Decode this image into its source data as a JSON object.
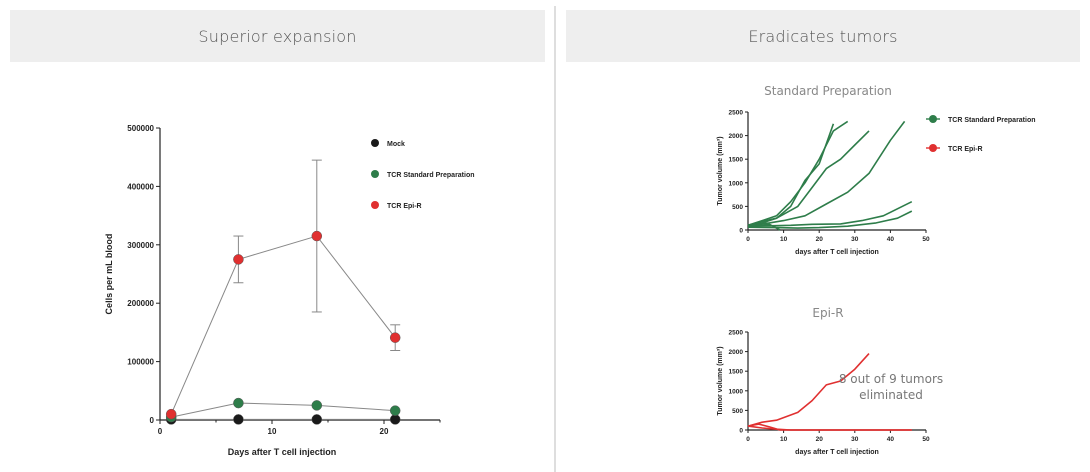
{
  "panels": {
    "left_title": "Superior expansion",
    "right_title": "Eradicates tumors"
  },
  "colors": {
    "mock": "#1a1a1a",
    "standard": "#2e7d4a",
    "epi": "#e03030",
    "connect": "#888888"
  },
  "chart_data": [
    {
      "type": "scatter",
      "title": "",
      "xlabel": "Days after T cell injection",
      "ylabel": "Cells per mL blood",
      "xlim": [
        0,
        25
      ],
      "ylim": [
        0,
        500000
      ],
      "xticks": [
        "0",
        "10",
        "20"
      ],
      "yticks": [
        "0",
        "100000",
        "200000",
        "300000",
        "400000",
        "500000"
      ],
      "legend_position": "top-right",
      "series": [
        {
          "name": "Mock",
          "x": [
            1,
            7,
            14,
            21
          ],
          "y": [
            1000,
            1000,
            1000,
            1000
          ]
        },
        {
          "name": "TCR Standard Preparation",
          "x": [
            1,
            7,
            14,
            21
          ],
          "y": [
            5000,
            29000,
            25000,
            16000
          ]
        },
        {
          "name": "TCR Epi-R",
          "x": [
            1,
            7,
            14,
            21
          ],
          "y": [
            10000,
            275000,
            315000,
            141000
          ],
          "error": [
            0,
            40000,
            130000,
            22000
          ]
        }
      ]
    },
    {
      "type": "line",
      "title": "Standard Preparation",
      "xlabel": "days after T cell injection",
      "ylabel": "Tumor volume (mm³)",
      "xlim": [
        0,
        50
      ],
      "ylim": [
        0,
        2500
      ],
      "xticks": [
        "0",
        "10",
        "20",
        "30",
        "40",
        "50"
      ],
      "yticks": [
        "0",
        "500",
        "1000",
        "1500",
        "2000",
        "2500"
      ],
      "legend_position": "right",
      "legend": [
        "TCR Standard Preparation",
        "TCR Epi-R"
      ],
      "series": [
        {
          "x": [
            0,
            4,
            8,
            12,
            16,
            20,
            24
          ],
          "y": [
            100,
            180,
            250,
            500,
            1050,
            1400,
            2250
          ]
        },
        {
          "x": [
            0,
            4,
            8,
            12,
            16,
            20,
            24,
            28
          ],
          "y": [
            100,
            200,
            300,
            600,
            1000,
            1500,
            2100,
            2300
          ]
        },
        {
          "x": [
            0,
            4,
            8,
            14,
            18,
            22,
            26,
            30,
            34
          ],
          "y": [
            100,
            150,
            250,
            500,
            900,
            1300,
            1500,
            1800,
            2100
          ]
        },
        {
          "x": [
            0,
            6,
            10,
            16,
            22,
            28,
            34,
            40,
            44
          ],
          "y": [
            100,
            150,
            200,
            300,
            550,
            800,
            1200,
            1900,
            2300
          ]
        },
        {
          "x": [
            0,
            6,
            12,
            18,
            26,
            32,
            38,
            46
          ],
          "y": [
            80,
            90,
            100,
            120,
            130,
            200,
            300,
            600
          ]
        },
        {
          "x": [
            0,
            8,
            14,
            20,
            28,
            36,
            42,
            46
          ],
          "y": [
            60,
            50,
            40,
            50,
            80,
            150,
            250,
            400
          ]
        },
        {
          "x": [
            0,
            3,
            6,
            9
          ],
          "y": [
            80,
            100,
            120,
            0
          ]
        }
      ]
    },
    {
      "type": "line",
      "title": "Epi-R",
      "xlabel": "days after T cell injection",
      "ylabel": "Tumor volume (mm³)",
      "xlim": [
        0,
        50
      ],
      "ylim": [
        0,
        2500
      ],
      "xticks": [
        "0",
        "10",
        "20",
        "30",
        "40",
        "50"
      ],
      "yticks": [
        "0",
        "500",
        "1000",
        "1500",
        "2000",
        "2500"
      ],
      "annotation": "8 out of 9 tumors eliminated",
      "series": [
        {
          "x": [
            0,
            4,
            8,
            14,
            18,
            22,
            26,
            30,
            34
          ],
          "y": [
            100,
            200,
            250,
            450,
            750,
            1150,
            1250,
            1550,
            1950
          ]
        },
        {
          "x": [
            0,
            3,
            6,
            9,
            12,
            15,
            20,
            30,
            40,
            46
          ],
          "y": [
            100,
            150,
            80,
            0,
            0,
            0,
            0,
            0,
            0,
            0
          ]
        },
        {
          "x": [
            0,
            4,
            8,
            12,
            16,
            46
          ],
          "y": [
            100,
            50,
            20,
            0,
            0,
            0
          ]
        }
      ]
    }
  ]
}
